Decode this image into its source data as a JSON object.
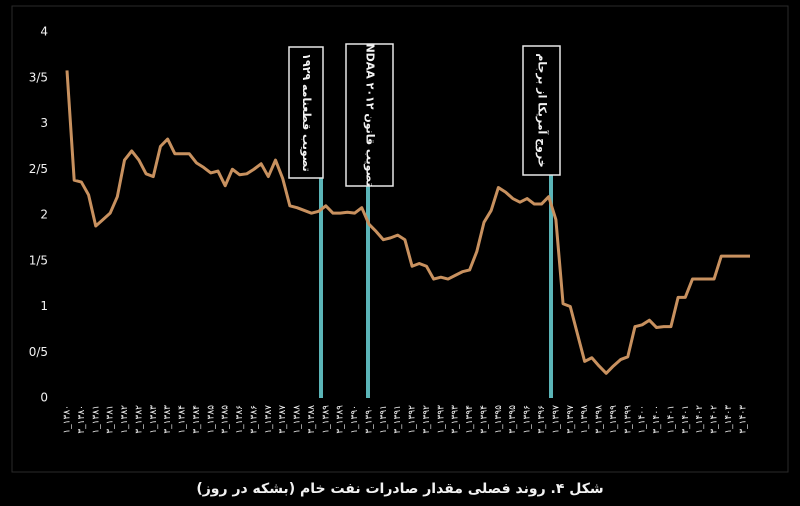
{
  "chart_data": {
    "type": "line",
    "title": "شکل ۴. روند فصلی مقدار صادرات نفت خام (بشکه در روز)",
    "categories": [
      "۱_۱۳۸۰",
      null,
      "۳_۱۳۸۰",
      null,
      "۱_۱۳۸۱",
      null,
      "۳_۱۳۸۱",
      null,
      "۱_۱۳۸۲",
      null,
      "۳_۱۳۸۲",
      null,
      "۱_۱۳۸۳",
      null,
      "۳_۱۳۸۳",
      null,
      "۱_۱۳۸۴",
      null,
      "۳_۱۳۸۴",
      null,
      "۱_۱۳۸۵",
      null,
      "۳_۱۳۸۵",
      null,
      "۱_۱۳۸۶",
      null,
      "۳_۱۳۸۶",
      null,
      "۱_۱۳۸۷",
      null,
      "۳_۱۳۸۷",
      null,
      "۱_۱۳۸۸",
      null,
      "۳_۱۳۸۸",
      null,
      "۱_۱۳۸۹",
      null,
      "۳_۱۳۸۹",
      null,
      "۱_۱۳۹۰",
      null,
      "۳_۱۳۹۰",
      null,
      "۱_۱۳۹۱",
      null,
      "۳_۱۳۹۱",
      null,
      "۱_۱۳۹۲",
      null,
      "۳_۱۳۹۲",
      null,
      "۱_۱۳۹۳",
      null,
      "۳_۱۳۹۳",
      null,
      "۱_۱۳۹۴",
      null,
      "۳_۱۳۹۴",
      null,
      "۱_۱۳۹۵",
      null,
      "۳_۱۳۹۵",
      null,
      "۱_۱۳۹۶",
      null,
      "۳_۱۳۹۶",
      null,
      "۱_۱۳۹۷",
      null,
      "۳_۱۳۹۷",
      null,
      "۱_۱۳۹۸",
      null,
      "۳_۱۳۹۸",
      null,
      "۱_۱۳۹۹",
      null,
      "۳_۱۳۹۹",
      null,
      "۱_۱۴۰۰",
      null,
      "۳_۱۴۰۰",
      null,
      "۱_۱۴۰۱",
      null,
      "۳_۱۴۰۱",
      null,
      "۱_۱۴۰۲",
      null,
      "۳_۱۴۰۲",
      null,
      "۱_۱۴۰۳",
      null,
      "۳_۱۴۰۳",
      null
    ],
    "values": [
      3.58,
      2.38,
      2.36,
      2.22,
      1.88,
      1.95,
      2.02,
      2.2,
      2.6,
      2.7,
      2.6,
      2.45,
      2.42,
      2.75,
      2.83,
      2.67,
      2.67,
      2.67,
      2.57,
      2.52,
      2.46,
      2.48,
      2.32,
      2.5,
      2.44,
      2.45,
      2.5,
      2.56,
      2.42,
      2.6,
      2.4,
      2.1,
      2.08,
      2.05,
      2.02,
      2.04,
      2.1,
      2.02,
      2.02,
      2.03,
      2.02,
      2.08,
      1.9,
      1.82,
      1.73,
      1.75,
      1.78,
      1.73,
      1.44,
      1.47,
      1.44,
      1.3,
      1.32,
      1.3,
      1.34,
      1.38,
      1.4,
      1.6,
      1.92,
      2.05,
      2.3,
      2.25,
      2.18,
      2.14,
      2.18,
      2.12,
      2.12,
      2.2,
      1.95,
      1.03,
      1.0,
      0.7,
      0.4,
      0.44,
      0.35,
      0.27,
      0.35,
      0.42,
      0.45,
      0.78,
      0.8,
      0.85,
      0.77,
      0.78,
      0.78,
      1.1,
      1.1,
      1.3,
      1.3,
      1.3,
      1.3,
      1.55,
      1.55,
      1.55,
      1.55,
      1.55
    ],
    "color": "#c8915f",
    "ylim": [
      0,
      4
    ],
    "yticks": [
      0,
      {
        "value": 0.5,
        "label": "0/5"
      },
      1,
      {
        "value": 1.5,
        "label": "1/5"
      },
      2,
      {
        "value": 2.5,
        "label": "2/5"
      },
      3,
      {
        "value": 3.5,
        "label": "3/5"
      },
      4
    ],
    "annotations": [
      {
        "text": "تصویب قطعنامه ۱۹۲۹"
      },
      {
        "text": "تصویب قانون NDAA ۲۰۱۲"
      },
      {
        "text": "خروج آمریکا از برجام"
      }
    ],
    "annotation_color": "#5bb5b8"
  }
}
